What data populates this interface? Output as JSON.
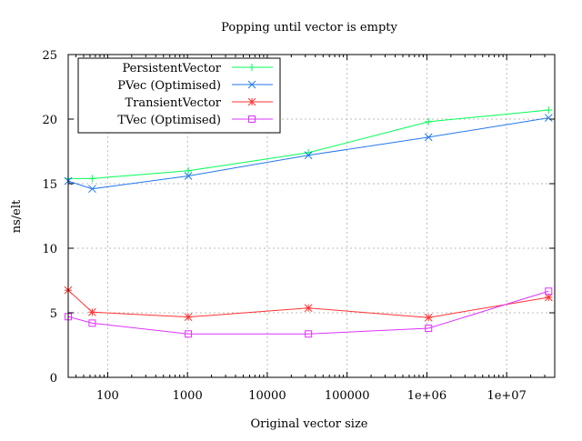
{
  "chart_data": {
    "type": "line",
    "title": "Popping until vector is empty",
    "xlabel": "Original vector size",
    "ylabel": "ns/elt",
    "xscale": "log",
    "xlim": [
      32,
      40000000
    ],
    "ylim": [
      0,
      25
    ],
    "grid": true,
    "legend_placement": "top-left",
    "xticks": [
      {
        "v": 100,
        "label": "100"
      },
      {
        "v": 1000,
        "label": "1000"
      },
      {
        "v": 10000,
        "label": "10000"
      },
      {
        "v": 100000,
        "label": "100000"
      },
      {
        "v": 1000000,
        "label": "1e+06"
      },
      {
        "v": 10000000,
        "label": "1e+07"
      }
    ],
    "yticks": [
      0,
      5,
      10,
      15,
      20,
      25
    ],
    "x": [
      32,
      64,
      1024,
      32768,
      1048576,
      33554432
    ],
    "series": [
      {
        "name": "PersistentVector",
        "color": "#00ff55",
        "marker": "plus",
        "values": [
          15.4,
          15.4,
          16.0,
          17.4,
          19.8,
          20.7
        ]
      },
      {
        "name": "PVec (Optimised)",
        "color": "#2277ee",
        "marker": "cross",
        "values": [
          15.2,
          14.6,
          15.6,
          17.2,
          18.6,
          20.1
        ]
      },
      {
        "name": "TransientVector",
        "color": "#ff3333",
        "marker": "star",
        "values": [
          6.75,
          5.05,
          4.67,
          5.37,
          4.63,
          6.2
        ]
      },
      {
        "name": "TVec (Optimised)",
        "color": "#dd33ff",
        "marker": "square",
        "values": [
          4.7,
          4.2,
          3.36,
          3.36,
          3.8,
          6.67
        ]
      }
    ]
  }
}
